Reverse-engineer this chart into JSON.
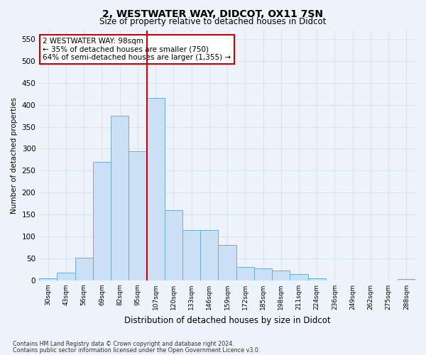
{
  "title_line1": "2, WESTWATER WAY, DIDCOT, OX11 7SN",
  "title_line2": "Size of property relative to detached houses in Didcot",
  "xlabel": "Distribution of detached houses by size in Didcot",
  "ylabel": "Number of detached properties",
  "footer_line1": "Contains HM Land Registry data © Crown copyright and database right 2024.",
  "footer_line2": "Contains public sector information licensed under the Open Government Licence v3.0.",
  "categories": [
    "30sqm",
    "43sqm",
    "56sqm",
    "69sqm",
    "82sqm",
    "95sqm",
    "107sqm",
    "120sqm",
    "133sqm",
    "146sqm",
    "159sqm",
    "172sqm",
    "185sqm",
    "198sqm",
    "211sqm",
    "224sqm",
    "236sqm",
    "249sqm",
    "262sqm",
    "275sqm",
    "288sqm"
  ],
  "values": [
    5,
    18,
    52,
    270,
    375,
    295,
    415,
    160,
    115,
    115,
    80,
    30,
    28,
    22,
    15,
    5,
    0,
    0,
    0,
    0,
    3
  ],
  "bar_color": "#cce0f5",
  "bar_edge_color": "#6aaed6",
  "highlight_color": "#cc0000",
  "redline_x": 5.5,
  "annotation_text": "2 WESTWATER WAY: 98sqm\n← 35% of detached houses are smaller (750)\n64% of semi-detached houses are larger (1,355) →",
  "annotation_box_color": "#ffffff",
  "annotation_box_edge_color": "#cc0000",
  "ylim": [
    0,
    570
  ],
  "yticks": [
    0,
    50,
    100,
    150,
    200,
    250,
    300,
    350,
    400,
    450,
    500,
    550
  ],
  "background_color": "#eef2fa",
  "grid_color": "#d8e4f0",
  "title_fontsize": 10,
  "subtitle_fontsize": 8.5
}
